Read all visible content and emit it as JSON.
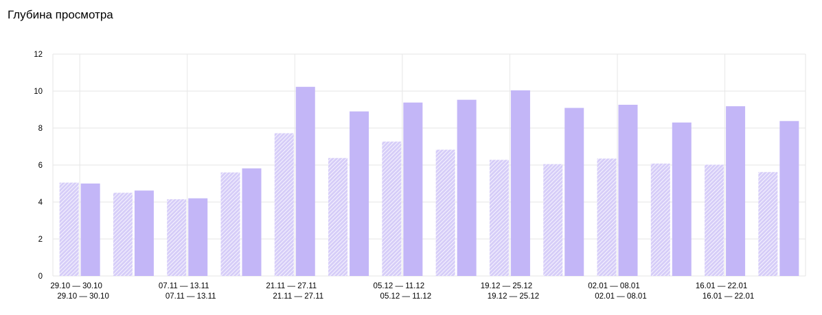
{
  "title": "Глубина просмотра",
  "colors": {
    "current": "#c3b6f7",
    "previous": "#d6cdf8",
    "hatch": "#ffffff",
    "grid": "#e6e6e6"
  },
  "chart_data": {
    "type": "bar",
    "title": "Глубина просмотра",
    "xlabel": "",
    "ylabel": "",
    "ylim": [
      0,
      12
    ],
    "yticks": [
      "0",
      "2",
      "4",
      "6",
      "8",
      "10",
      "12"
    ],
    "grid": true,
    "categories": [
      "29.10 — 30.10",
      "",
      "07.11 — 13.11",
      "",
      "21.11 — 27.11",
      "",
      "05.12 — 11.12",
      "",
      "19.12 — 25.12",
      "",
      "02.01 — 08.01",
      "",
      "16.01 — 22.01",
      ""
    ],
    "categories_secondary": [
      "29.10 — 30.10",
      "",
      "07.11 — 13.11",
      "",
      "21.11 — 27.11",
      "",
      "05.12 — 11.12",
      "",
      "19.12 — 25.12",
      "",
      "02.01 — 08.01",
      "",
      "16.01 — 22.01",
      ""
    ],
    "series": [
      {
        "style": "hatched",
        "values": [
          5.05,
          4.5,
          4.15,
          5.6,
          7.72,
          6.38,
          7.27,
          6.83,
          6.28,
          6.05,
          6.35,
          6.08,
          6.02,
          5.62
        ]
      },
      {
        "style": "solid",
        "values": [
          5.0,
          4.62,
          4.2,
          5.82,
          10.23,
          8.9,
          9.38,
          9.53,
          10.04,
          9.09,
          9.26,
          8.3,
          9.18,
          8.38
        ]
      }
    ]
  }
}
